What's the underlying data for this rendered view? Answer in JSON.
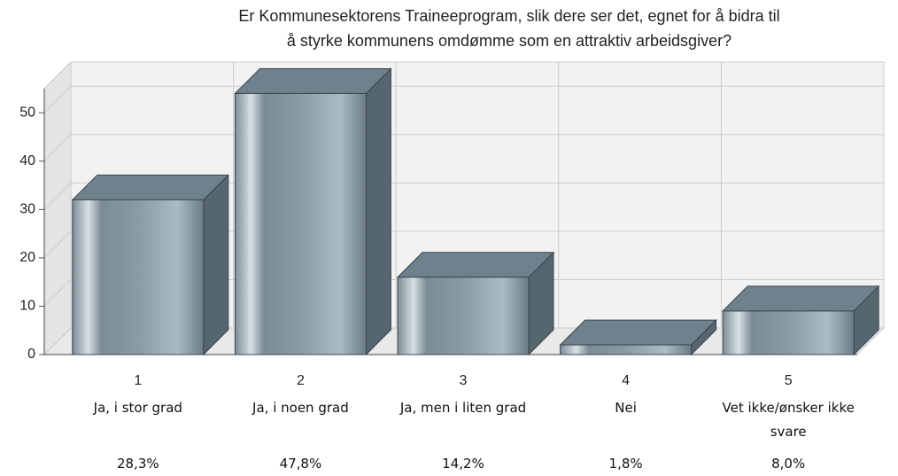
{
  "chart_data": {
    "type": "bar3d",
    "title": [
      "Er Kommunesektorens Traineeprogram, slik dere ser det, egnet for å bidra til",
      "å styrke kommunens omdømme som en attraktiv arbeidsgiver?"
    ],
    "categories": [
      "1",
      "2",
      "3",
      "4",
      "5"
    ],
    "category_labels": [
      "Ja, i stor grad",
      "Ja, i noen grad",
      "Ja, men i liten grad",
      "Nei",
      "Vet ikke/ønsker ikke svare"
    ],
    "values": [
      32,
      54,
      16,
      2,
      9
    ],
    "shares": [
      "28,3%",
      "47,8%",
      "14,2%",
      "1,8%",
      "8,0%"
    ],
    "color": "#8fa3ae",
    "ylim": [
      0,
      55
    ],
    "yticks": [
      0,
      10,
      20,
      30,
      40,
      50
    ],
    "grid": true
  }
}
